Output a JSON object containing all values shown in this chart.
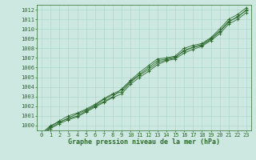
{
  "x": [
    0,
    1,
    2,
    3,
    4,
    5,
    6,
    7,
    8,
    9,
    10,
    11,
    12,
    13,
    14,
    15,
    16,
    17,
    18,
    19,
    20,
    21,
    22,
    23
  ],
  "series": [
    [
      999.2,
      1000.0,
      1000.4,
      1000.7,
      1001.0,
      1001.5,
      1002.0,
      1002.5,
      1003.0,
      1003.8,
      1004.7,
      1005.5,
      1006.2,
      1006.9,
      1007.0,
      1007.2,
      1008.0,
      1008.3,
      1008.5,
      1009.1,
      1010.0,
      1011.0,
      1011.5,
      1012.2
    ],
    [
      999.0,
      999.8,
      1000.3,
      1000.8,
      1001.2,
      1001.6,
      1002.1,
      1002.7,
      1003.2,
      1003.5,
      1004.5,
      1005.2,
      1005.8,
      1006.5,
      1006.8,
      1007.0,
      1007.8,
      1008.1,
      1008.4,
      1009.0,
      1009.8,
      1010.8,
      1011.2,
      1012.0
    ],
    [
      999.0,
      999.7,
      1000.2,
      1000.6,
      1000.9,
      1001.4,
      1001.9,
      1002.4,
      1002.9,
      1003.3,
      1004.3,
      1005.0,
      1005.6,
      1006.3,
      1006.7,
      1006.9,
      1007.5,
      1007.9,
      1008.2,
      1008.8,
      1009.5,
      1010.5,
      1011.0,
      1011.7
    ],
    [
      999.1,
      999.9,
      1000.5,
      1001.0,
      1001.3,
      1001.7,
      1002.2,
      1002.8,
      1003.3,
      1003.7,
      1004.6,
      1005.3,
      1006.0,
      1006.7,
      1006.9,
      1007.1,
      1007.7,
      1008.1,
      1008.3,
      1008.9,
      1009.7,
      1010.7,
      1011.3,
      1011.9
    ]
  ],
  "line_color": "#2d6a2d",
  "marker": "+",
  "marker_size": 3,
  "linewidth": 0.6,
  "background_color": "#cde8e0",
  "grid_color": "#b0d8cc",
  "xlabel": "Graphe pression niveau de la mer (hPa)",
  "ylim": [
    999.5,
    1012.5
  ],
  "xlim": [
    -0.5,
    23.5
  ],
  "yticks": [
    1000,
    1001,
    1002,
    1003,
    1004,
    1005,
    1006,
    1007,
    1008,
    1009,
    1010,
    1011,
    1012
  ],
  "xticks": [
    0,
    1,
    2,
    3,
    4,
    5,
    6,
    7,
    8,
    9,
    10,
    11,
    12,
    13,
    14,
    15,
    16,
    17,
    18,
    19,
    20,
    21,
    22,
    23
  ],
  "tick_label_fontsize": 5.0,
  "xlabel_fontsize": 6.0,
  "tick_color": "#2d6a2d",
  "label_color": "#2d6a2d"
}
